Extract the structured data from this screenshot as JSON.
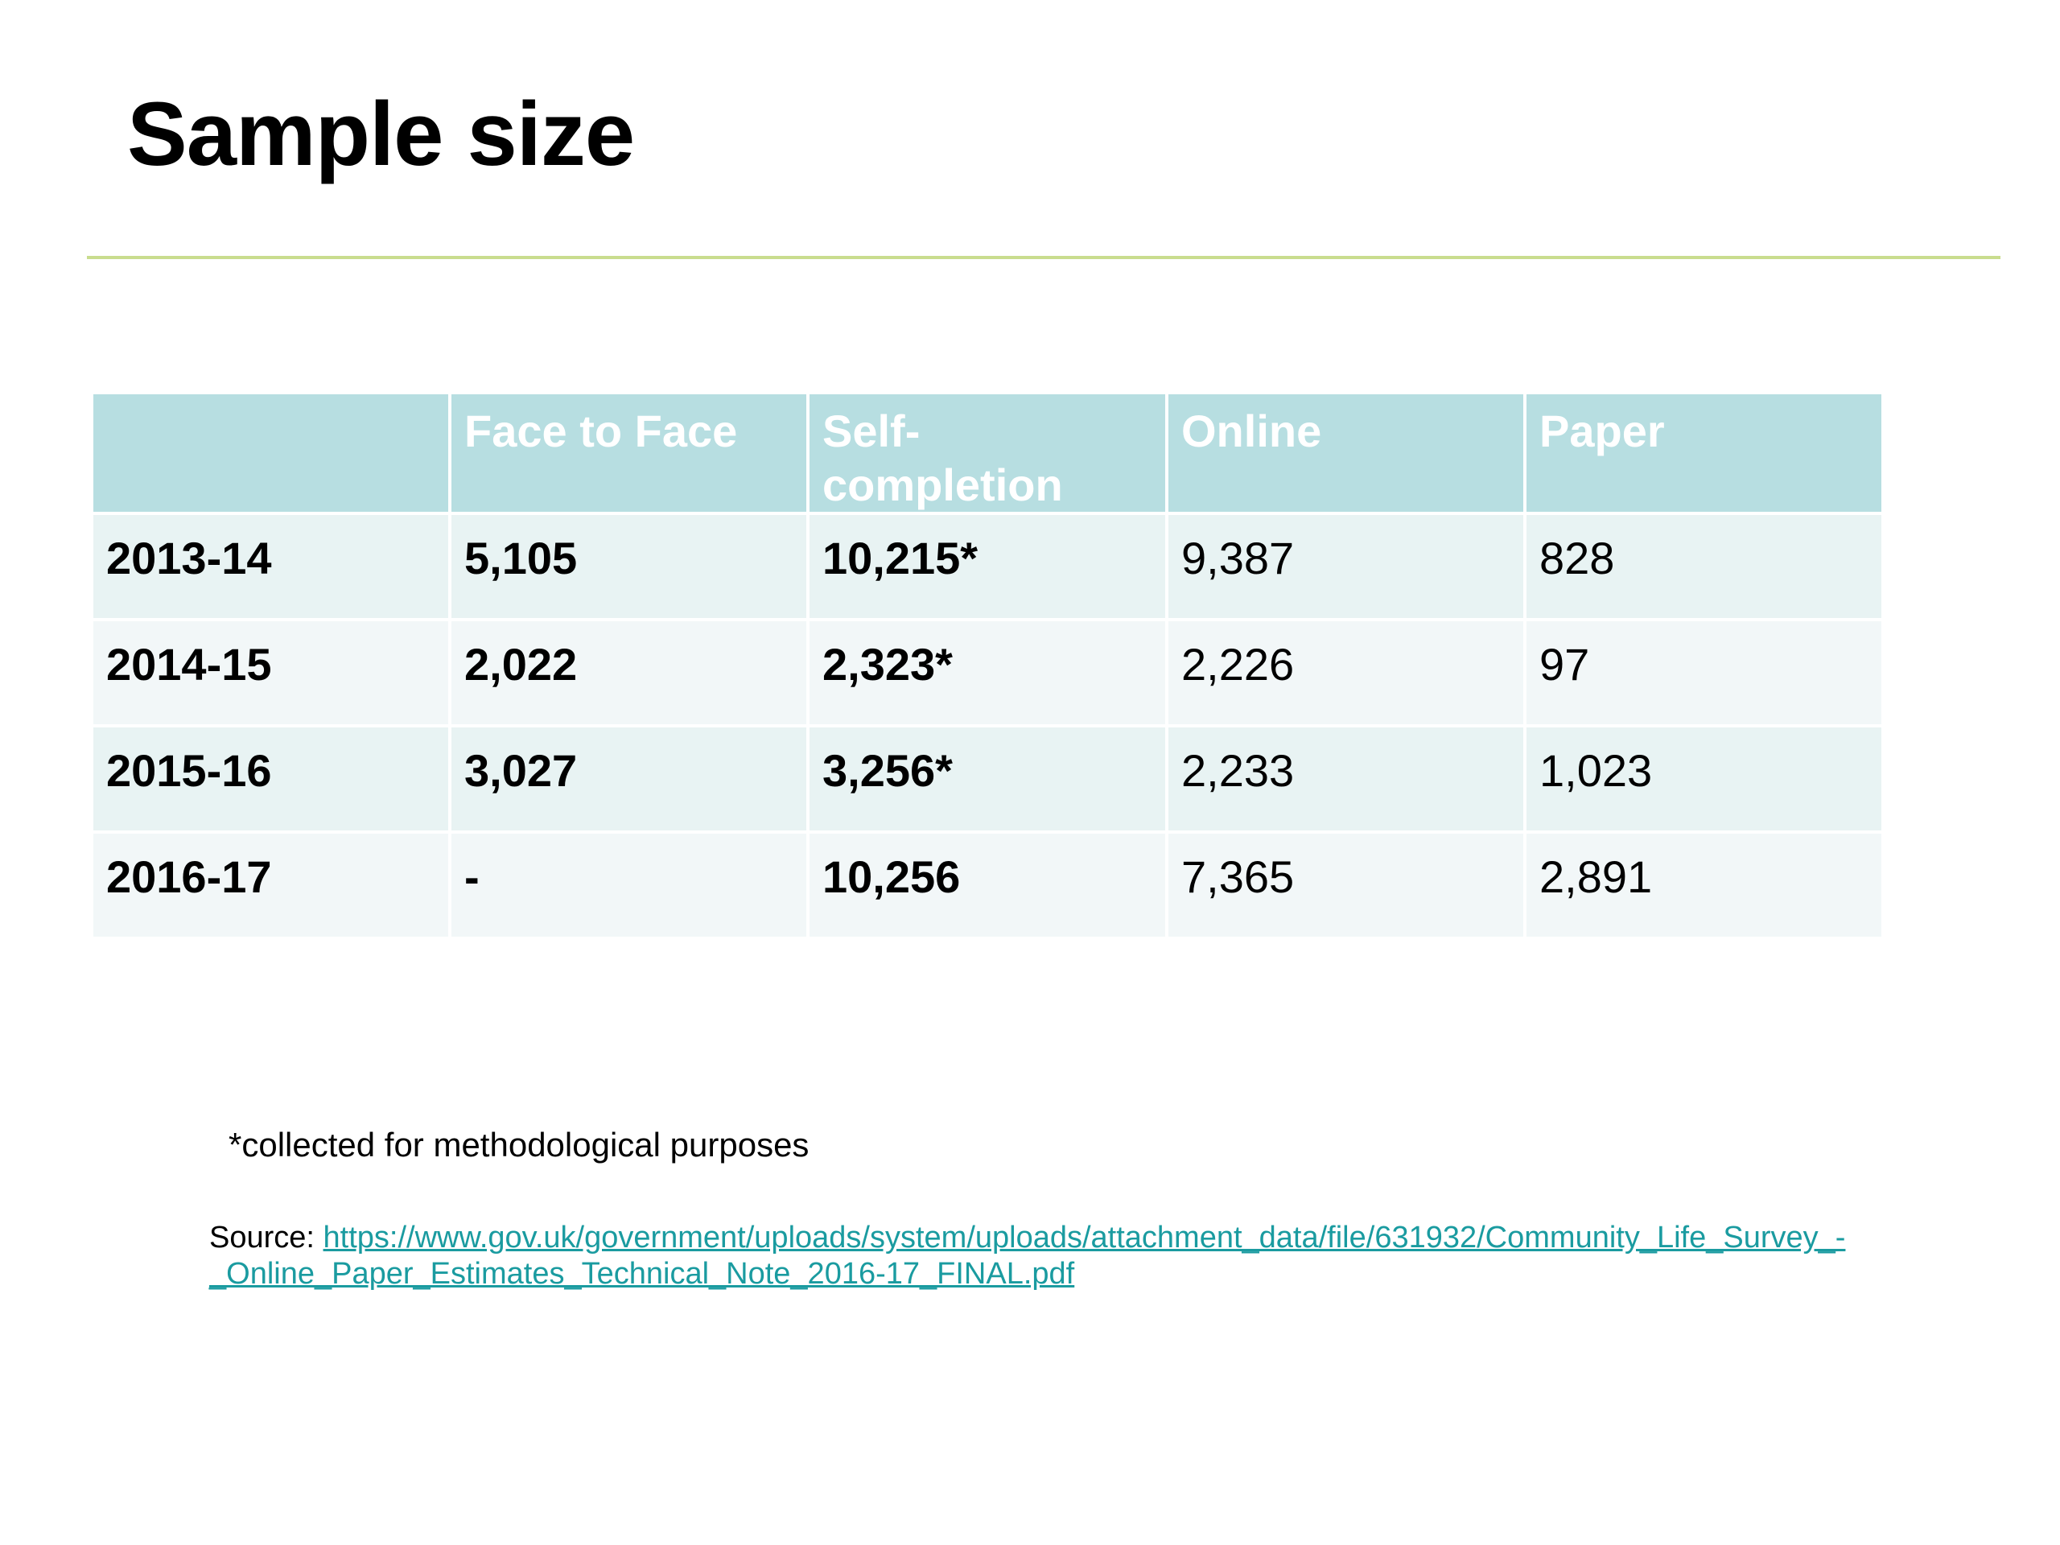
{
  "slide": {
    "title": "Sample size"
  },
  "table": {
    "headers": [
      "",
      "Face to Face",
      "Self-completion",
      "Online",
      "Paper"
    ],
    "rows": [
      [
        "2013-14",
        "5,105",
        "10,215*",
        "9,387",
        "828"
      ],
      [
        "2014-15",
        "2,022",
        "2,323*",
        "2,226",
        "97"
      ],
      [
        "2015-16",
        "3,027",
        "3,256*",
        "2,233",
        "1,023"
      ],
      [
        "2016-17",
        "-",
        "10,256",
        "7,365",
        "2,891"
      ]
    ]
  },
  "footnote": "*collected for methodological purposes",
  "source": {
    "label": "Source: ",
    "link_text": "https://www.gov.uk/government/uploads/system/uploads/attachment_data/file/631932/Community_Life_Survey_-_Online_Paper_Estimates_Technical_Note_2016-17_FINAL.pdf"
  },
  "colors": {
    "header_fill": "#b7dee1",
    "row_fill_odd": "#e8f3f3",
    "row_fill_even": "#f2f7f8",
    "rule": "#c9dd8e",
    "link": "#1a9ba0"
  }
}
